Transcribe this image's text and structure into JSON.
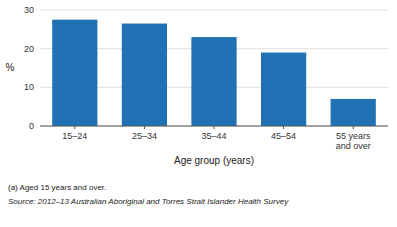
{
  "chart_data": {
    "type": "bar",
    "categories": [
      "15–24",
      "25–34",
      "35–44",
      "45–54",
      "55 years\nand over"
    ],
    "values": [
      27.5,
      26.5,
      23.0,
      19.0,
      7.0
    ],
    "color": "#2171b5",
    "xlabel": "Age group (years)",
    "ylabel": "%",
    "ylim": [
      0,
      30
    ],
    "yticks": [
      0,
      10,
      20,
      30
    ],
    "grid": true,
    "annotations": [
      "(a) Aged 15 years and over.",
      "Source: 2012–13 Australian Aboriginal and Torres Strait Islander Health Survey"
    ]
  }
}
